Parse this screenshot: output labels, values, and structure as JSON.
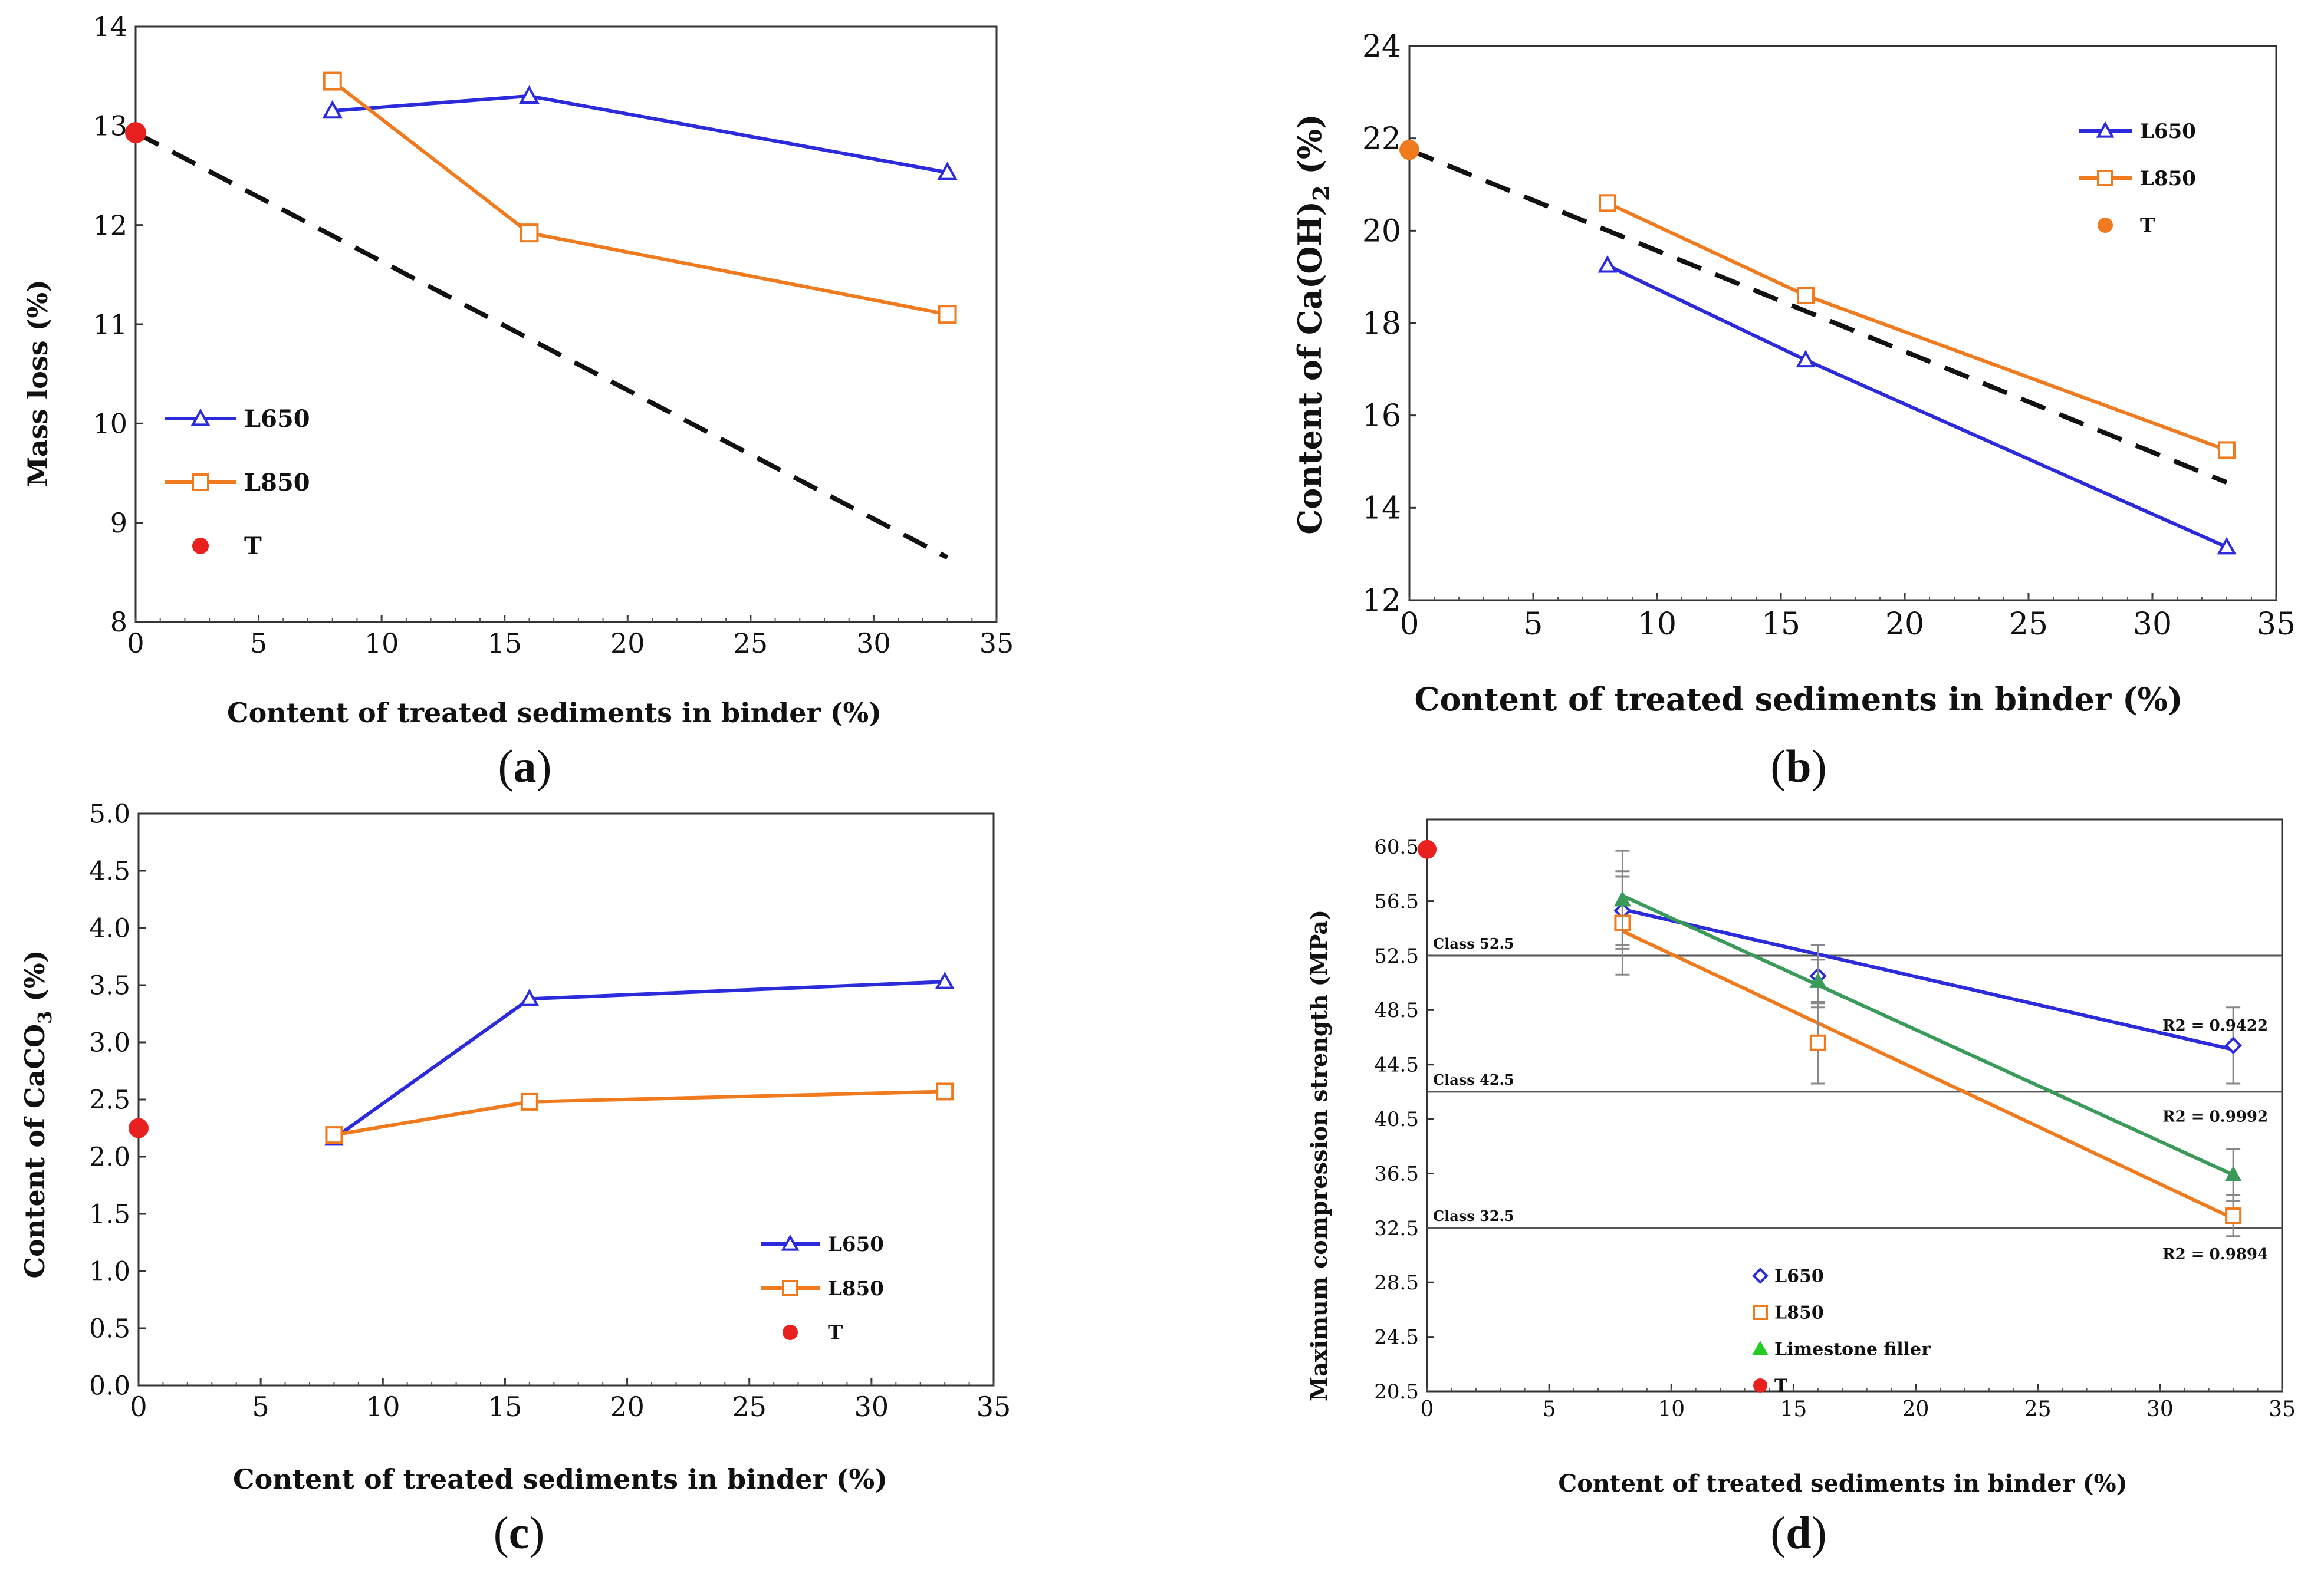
{
  "chart_data": [
    {
      "id": "a",
      "type": "line",
      "caption": "a",
      "title": "",
      "xlabel": "Content of treated sediments in binder (%)",
      "ylabel": "Mass loss (%)",
      "xlim": [
        0,
        35
      ],
      "ylim": [
        8,
        14
      ],
      "xticks": [
        0,
        5,
        10,
        15,
        20,
        25,
        30,
        35
      ],
      "yticks": [
        8,
        9,
        10,
        11,
        12,
        13,
        14
      ],
      "tick_decimals": 0,
      "legend_position": "middle-left",
      "series": [
        {
          "name": "L650",
          "marker": "triangle",
          "color": "#2b2bdb",
          "x": [
            8,
            16,
            33
          ],
          "y": [
            13.15,
            13.3,
            12.53
          ]
        },
        {
          "name": "L850",
          "marker": "square",
          "color": "#f07a1e",
          "x": [
            8,
            16,
            33
          ],
          "y": [
            13.45,
            11.92,
            11.1
          ]
        },
        {
          "name": "T",
          "marker": "dot",
          "color": "#e8201e",
          "x": [
            0
          ],
          "y": [
            12.93
          ]
        }
      ],
      "reference_line": {
        "style": "dashed",
        "x": [
          0,
          33
        ],
        "y": [
          12.93,
          8.65
        ]
      }
    },
    {
      "id": "b",
      "type": "line",
      "caption": "b",
      "title": "",
      "xlabel": "Content of treated sediments in binder (%)",
      "ylabel_main": "Content of Ca(OH)",
      "ylabel_sub": "2",
      "ylabel_end": " (%)",
      "xlim": [
        0,
        35
      ],
      "ylim": [
        12,
        24
      ],
      "xticks": [
        0,
        5,
        10,
        15,
        20,
        25,
        30,
        35
      ],
      "yticks": [
        12,
        14,
        16,
        18,
        20,
        22,
        24
      ],
      "tick_decimals": 0,
      "legend_position": "top-right",
      "series": [
        {
          "name": "L650",
          "marker": "triangle",
          "color": "#2b2bdb",
          "x": [
            8,
            16,
            33
          ],
          "y": [
            19.25,
            17.2,
            13.15
          ]
        },
        {
          "name": "L850",
          "marker": "square",
          "color": "#f07a1e",
          "x": [
            8,
            16,
            33
          ],
          "y": [
            20.6,
            18.6,
            15.25
          ]
        },
        {
          "name": "T",
          "marker": "dot",
          "color": "#f07a1e",
          "x": [
            0
          ],
          "y": [
            21.75
          ]
        }
      ],
      "reference_line": {
        "style": "dashed",
        "x": [
          0,
          33
        ],
        "y": [
          21.75,
          14.55
        ]
      }
    },
    {
      "id": "c",
      "type": "line",
      "caption": "c",
      "title": "",
      "xlabel": "Content of treated sediments in binder (%)",
      "ylabel_main": "Content of CaCO",
      "ylabel_sub": "3",
      "ylabel_end": " (%)",
      "xlim": [
        0,
        35
      ],
      "ylim": [
        0,
        5
      ],
      "xticks": [
        0,
        5,
        10,
        15,
        20,
        25,
        30,
        35
      ],
      "yticks": [
        0.0,
        0.5,
        1.0,
        1.5,
        2.0,
        2.5,
        3.0,
        3.5,
        4.0,
        4.5,
        5.0
      ],
      "tick_decimals": 1,
      "legend_position": "bottom-right",
      "series": [
        {
          "name": "L650",
          "marker": "triangle",
          "color": "#2b2bdb",
          "x": [
            8,
            16,
            33
          ],
          "y": [
            2.16,
            3.38,
            3.53
          ]
        },
        {
          "name": "L850",
          "marker": "square",
          "color": "#f07a1e",
          "x": [
            8,
            16,
            33
          ],
          "y": [
            2.19,
            2.48,
            2.57
          ]
        },
        {
          "name": "T",
          "marker": "dot",
          "color": "#e8201e",
          "x": [
            0
          ],
          "y": [
            2.25
          ]
        }
      ]
    },
    {
      "id": "d",
      "type": "scatter",
      "caption": "d",
      "title": "",
      "xlabel": "Content of treated sediments in binder (%)",
      "ylabel": "Maximum compression strength (MPa)",
      "xlim": [
        0,
        35
      ],
      "ylim": [
        20.5,
        62.5
      ],
      "xticks": [
        0,
        5,
        10,
        15,
        20,
        25,
        30,
        35
      ],
      "yticks": [
        20.5,
        24.5,
        28.5,
        32.5,
        36.5,
        40.5,
        44.5,
        48.5,
        52.5,
        56.5,
        60.5
      ],
      "tick_decimals": 1,
      "legend_position": "bottom-center",
      "class_lines": [
        {
          "label": "Class 52.5",
          "y": 52.5
        },
        {
          "label": "Class 42.5",
          "y": 42.5
        },
        {
          "label": "Class 32.5",
          "y": 32.5
        }
      ],
      "series": [
        {
          "name": "L650",
          "marker": "diamond",
          "color": "#2b2bdb",
          "x": [
            8,
            16,
            33
          ],
          "y": [
            55.8,
            51.0,
            45.9
          ],
          "err": [
            2.5,
            2.3,
            2.8
          ],
          "fit": {
            "x": [
              8,
              33
            ],
            "y": [
              55.9,
              45.6
            ],
            "r2": "R2 = 0.9422"
          }
        },
        {
          "name": "L850",
          "marker": "square",
          "color": "#f07a1e",
          "x": [
            8,
            16,
            33
          ],
          "y": [
            54.9,
            46.1,
            33.4
          ],
          "err": [
            3.8,
            3.0,
            1.5
          ],
          "fit": {
            "x": [
              8,
              33
            ],
            "y": [
              54.3,
              33.2
            ],
            "r2": "R2 = 0.9894"
          }
        },
        {
          "name": "Limestone filler",
          "marker": "triangle-filled",
          "color": "#3a9a5a",
          "legend_color": "#22cc22",
          "x": [
            8,
            16,
            33
          ],
          "y": [
            56.6,
            50.6,
            36.4
          ],
          "err": [
            3.6,
            1.6,
            1.9
          ],
          "fit": {
            "x": [
              8,
              33
            ],
            "y": [
              56.9,
              36.4
            ],
            "r2": "R2 = 0.9992"
          }
        },
        {
          "name": "T",
          "marker": "dot",
          "color": "#e8201e",
          "x": [
            0
          ],
          "y": [
            60.3
          ]
        }
      ]
    }
  ]
}
